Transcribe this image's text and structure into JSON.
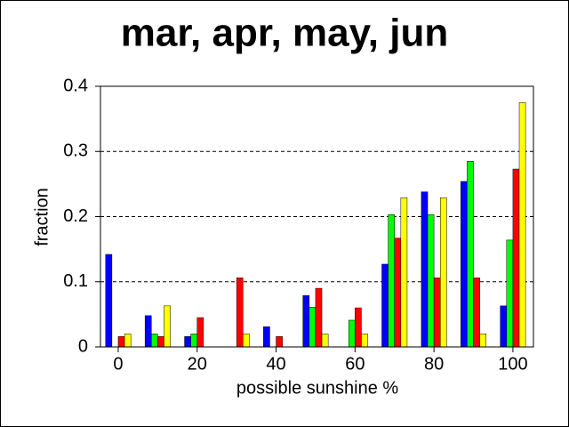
{
  "chart_data": {
    "type": "bar",
    "title": "mar, apr, may, jun",
    "xlabel": "possible sunshine %",
    "ylabel": "fraction",
    "x": [
      0,
      10,
      20,
      30,
      40,
      50,
      60,
      70,
      80,
      90,
      100
    ],
    "series": [
      {
        "color": "#0000ff",
        "values": [
          0.142,
          0.048,
          0.016,
          0,
          0.031,
          0.079,
          0,
          0.127,
          0.238,
          0.254,
          0.063
        ]
      },
      {
        "color": "#00ff00",
        "values": [
          0,
          0.02,
          0.02,
          0,
          0,
          0.061,
          0.041,
          0.203,
          0.203,
          0.285,
          0.164
        ]
      },
      {
        "color": "#ff0000",
        "values": [
          0.016,
          0.016,
          0.045,
          0.106,
          0.016,
          0.09,
          0.06,
          0.167,
          0.106,
          0.106,
          0.273
        ]
      },
      {
        "color": "#ffff00",
        "values": [
          0.02,
          0.063,
          0,
          0.02,
          0,
          0.02,
          0.02,
          0.229,
          0.229,
          0.02,
          0.375
        ]
      }
    ],
    "xlim": [
      -4.5,
      105.2
    ],
    "xticks": [
      0,
      20,
      40,
      60,
      80,
      100
    ],
    "ylim": [
      0,
      0.4
    ],
    "yticks": [
      0,
      0.1,
      0.2,
      0.3,
      0.4
    ],
    "grid": true
  }
}
